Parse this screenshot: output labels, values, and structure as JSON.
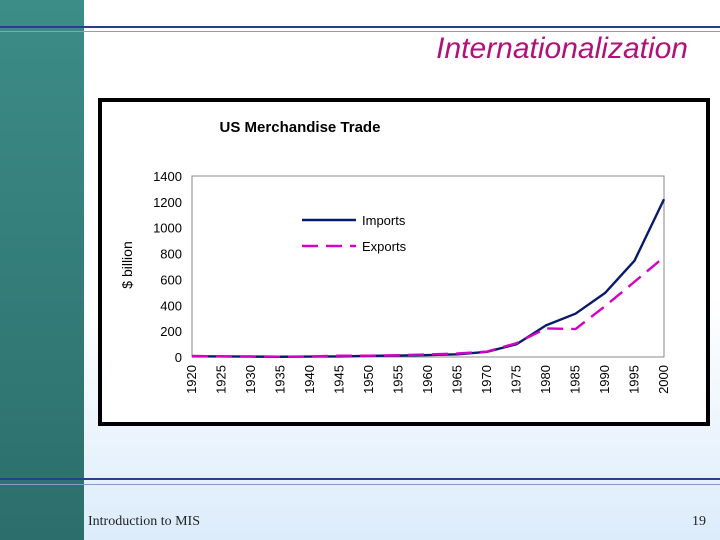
{
  "slide": {
    "title": "Internationalization",
    "footer_left": "Introduction to MIS",
    "page_number": "19"
  },
  "colors": {
    "sidebar": "#3c8c88",
    "title": "#b0127a",
    "imports": "#0a1a6a",
    "exports": "#d400c8"
  },
  "chart_data": {
    "type": "line",
    "title": "US Merchandise Trade",
    "ylabel": "$ billion",
    "xlabel": "",
    "ylim": [
      0,
      1400
    ],
    "yticks": [
      0,
      200,
      400,
      600,
      800,
      1000,
      1200,
      1400
    ],
    "x": [
      "1920",
      "1925",
      "1930",
      "1935",
      "1940",
      "1945",
      "1950",
      "1955",
      "1960",
      "1965",
      "1970",
      "1975",
      "1980",
      "1985",
      "1990",
      "1995",
      "2000"
    ],
    "legend_position": "top-left",
    "series": [
      {
        "name": "Imports",
        "style": "solid",
        "values": [
          5,
          4,
          3,
          2,
          3,
          4,
          9,
          11,
          15,
          21,
          40,
          99,
          245,
          335,
          495,
          745,
          1220
        ]
      },
      {
        "name": "Exports",
        "style": "dashed",
        "values": [
          8,
          5,
          4,
          2,
          4,
          10,
          10,
          14,
          20,
          27,
          42,
          107,
          221,
          216,
          393,
          582,
          772
        ]
      }
    ]
  }
}
